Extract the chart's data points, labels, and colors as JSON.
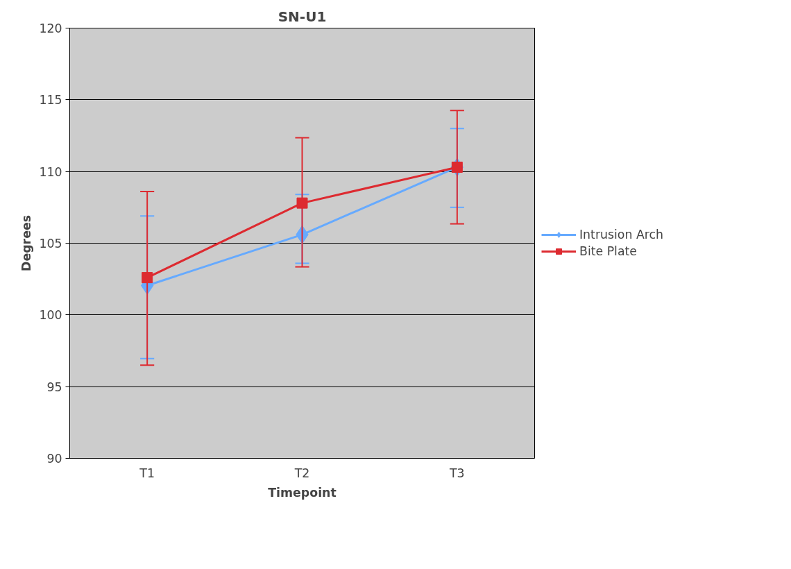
{
  "chart_data": {
    "type": "line",
    "title": "SN-U1",
    "xlabel": "Timepoint",
    "ylabel": "Degrees",
    "categories": [
      "T1",
      "T2",
      "T3"
    ],
    "series": [
      {
        "name": "Intrusion Arch",
        "color": "#66aaff",
        "marker": "diamond",
        "values": [
          102.05,
          105.6,
          110.3
        ],
        "errors": [
          [
            96.95,
            106.9
          ],
          [
            103.6,
            108.4
          ],
          [
            107.5,
            113.0
          ]
        ]
      },
      {
        "name": "Bite Plate",
        "color": "#dd2a30",
        "marker": "square",
        "values": [
          102.6,
          107.8,
          110.3
        ],
        "errors": [
          [
            96.5,
            108.6
          ],
          [
            103.35,
            112.35
          ],
          [
            106.35,
            114.25
          ]
        ]
      }
    ],
    "ylim": [
      90,
      120
    ],
    "yticks": [
      90,
      95,
      100,
      105,
      110,
      115,
      120
    ],
    "grid": "y",
    "legend": "right",
    "line_style": "solid"
  }
}
